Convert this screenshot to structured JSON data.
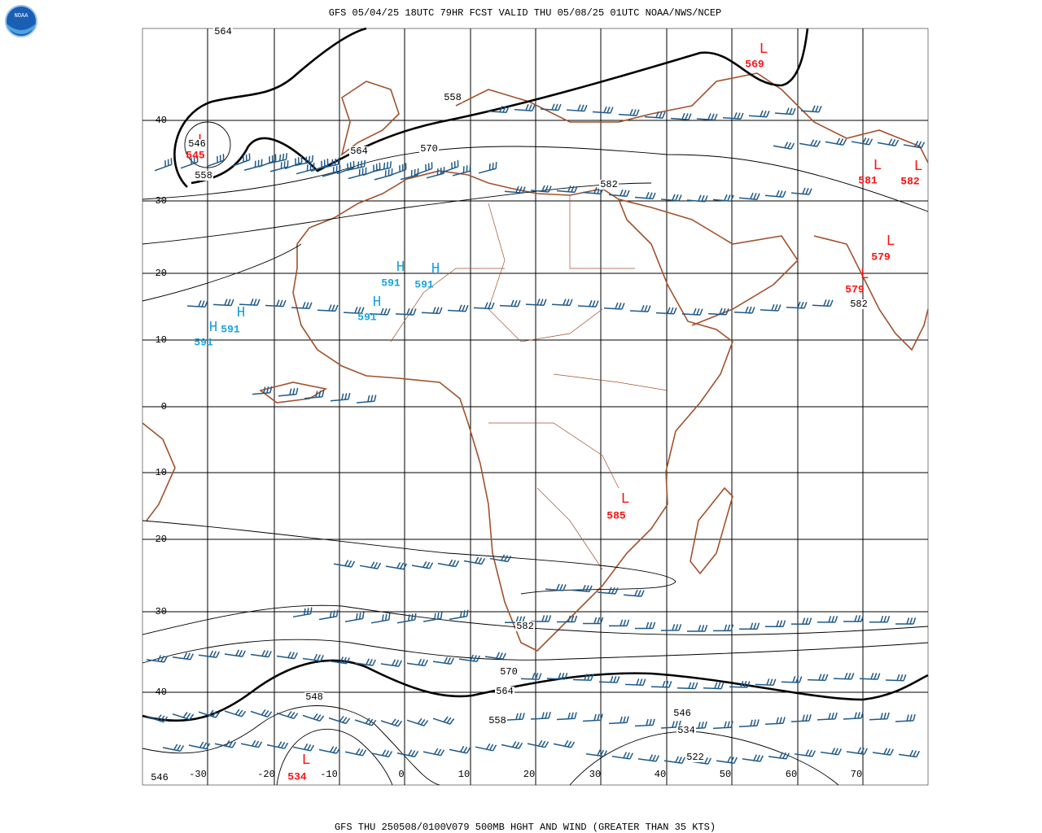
{
  "header": {
    "title": "GFS 05/04/25 18UTC 79HR FCST VALID THU 05/08/25 01UTC NOAA/NWS/NCEP"
  },
  "footer": {
    "caption": "GFS THU 250508/0100V079 500MB HGHT AND WIND (GREATER THAN 35 KTS)"
  },
  "logo": {
    "text": "NOAA"
  },
  "lat_labels": [
    "40",
    "30",
    "20",
    "10",
    "0",
    "-10",
    "-20",
    "-30",
    "-40"
  ],
  "lon_labels": [
    "-30",
    "-20",
    "-10",
    "0",
    "10",
    "20",
    "30",
    "40",
    "50",
    "60",
    "70"
  ],
  "highs": [
    {
      "symbol": "H",
      "value": "591"
    },
    {
      "symbol": "H",
      "value": "591"
    },
    {
      "symbol": "H",
      "value": "591"
    },
    {
      "symbol": "H",
      "value": "591"
    },
    {
      "symbol": "H",
      "value": "591"
    }
  ],
  "lows": [
    {
      "symbol": "L",
      "value": "569"
    },
    {
      "symbol": "L",
      "value": "545"
    },
    {
      "symbol": "L",
      "value": "581"
    },
    {
      "symbol": "L",
      "value": "582"
    },
    {
      "symbol": "L",
      "value": "579"
    },
    {
      "symbol": "L",
      "value": "579"
    },
    {
      "symbol": "L",
      "value": "585"
    },
    {
      "symbol": "L",
      "value": "534"
    }
  ],
  "contour_labels": [
    "564",
    "546",
    "558",
    "564",
    "570",
    "558",
    "582",
    "582",
    "582",
    "570",
    "564",
    "558",
    "548",
    "546",
    "534",
    "522",
    "546"
  ]
}
